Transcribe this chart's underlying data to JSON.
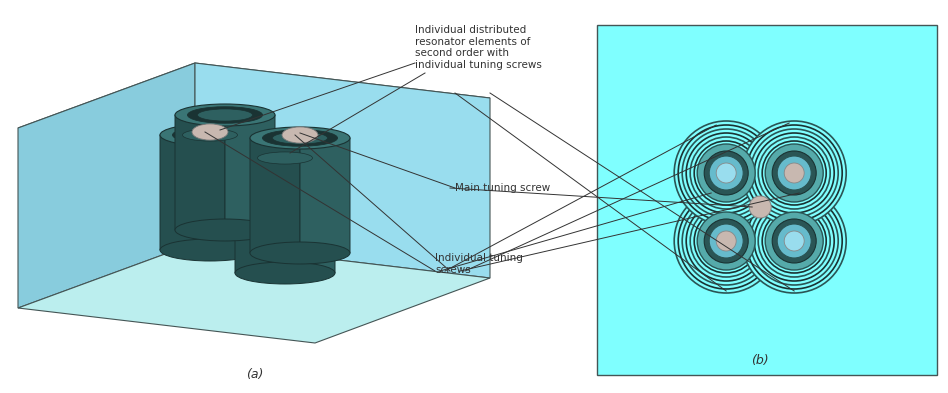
{
  "bg_color": "#AAEEFF",
  "light_teal_box": "#AAEEFF",
  "light_teal_right": "#7FFFFF",
  "light_teal_top": "#CCEEEE",
  "light_teal_side_l": "#99DDEE",
  "light_teal_side_r": "#BBEEEE",
  "cyl_body": "#2E6060",
  "cyl_side": "#254F4F",
  "cyl_top": "#3A7575",
  "cyl_dark": "#1A3333",
  "cyl_inner": "#1E4A4A",
  "screw_gray": "#BBAAAA",
  "screw_teal": "#7FFFFF",
  "pink_gray": "#C8B8B0",
  "dark_outline": "#333333",
  "ann_color": "#333333",
  "label_a": "(a)",
  "label_b": "(b)",
  "ann1": "Individual distributed\nresonator elements of\nsecond order with\nindividual tuning screws",
  "ann2": "Main tuning screw",
  "ann3": "Individual tuning\nscrews"
}
